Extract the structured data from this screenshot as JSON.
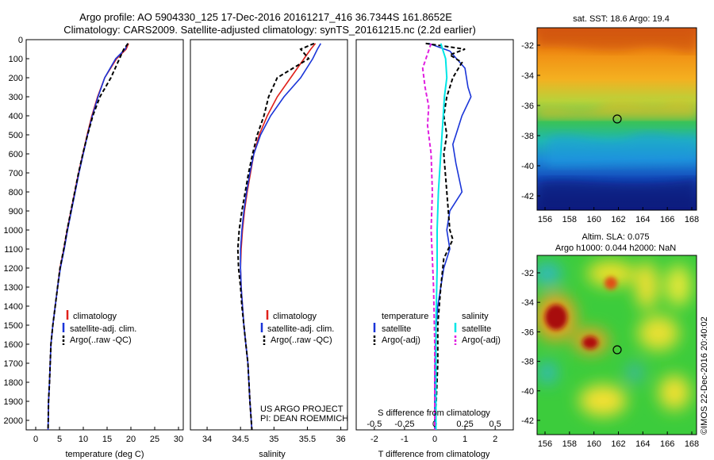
{
  "title": {
    "line1": "Argo profile: AO 5904330_125 17-Dec-2016 20161217_416 36.7344S 161.8652E",
    "line2": "Climatology: CARS2009. Satellite-adjusted climatology: synTS_20161215.nc (2.2d earlier)"
  },
  "colors": {
    "climatology": "#e0201a",
    "satellite": "#1a35d8",
    "argo": "#000000",
    "salinity_sat": "#00e6e6",
    "salinity_argo": "#e020e0",
    "frame": "#000000"
  },
  "panel_temperature": {
    "xlabel": "temperature (deg C)",
    "xticks": [
      "0",
      "5",
      "10",
      "15",
      "20",
      "25",
      "30"
    ],
    "yticks": [
      "0",
      "100",
      "200",
      "300",
      "400",
      "500",
      "600",
      "700",
      "800",
      "900",
      "1000",
      "1100",
      "1200",
      "1300",
      "1400",
      "1500",
      "1600",
      "1700",
      "1800",
      "1900",
      "2000"
    ],
    "legend": [
      "climatology",
      "satellite-adj. clim.",
      "Argo(..raw -QC)"
    ]
  },
  "panel_salinity": {
    "xlabel": "salinity",
    "xticks": [
      "34",
      "34.5",
      "35",
      "35.5",
      "36"
    ],
    "legend": [
      "climatology",
      "satellite-adj. clim.",
      "Argo(..raw -QC)"
    ],
    "credit_line1": "US ARGO PROJECT",
    "credit_line2": "PI: DEAN ROEMMICH"
  },
  "panel_difference": {
    "top_xlabel": "S difference from climatology",
    "top_xticks": [
      "-0.5",
      "-0.25",
      "0",
      "0.25",
      "0.5"
    ],
    "bottom_xlabel": "T difference from climatology",
    "bottom_xticks": [
      "-2",
      "-1",
      "0",
      "1",
      "2"
    ],
    "legend_temperature_title": "temperature",
    "legend_temperature": [
      "satellite",
      "Argo(-adj)"
    ],
    "legend_salinity_title": "salinity",
    "legend_salinity": [
      "satellite",
      "Argo(-adj)"
    ]
  },
  "map_sst": {
    "title": "sat. SST: 18.6  Argo: 19.4",
    "yticks": [
      "-32",
      "-34",
      "-36",
      "-38",
      "-40",
      "-42"
    ],
    "xticks": [
      "156",
      "158",
      "160",
      "162",
      "164",
      "166",
      "168"
    ]
  },
  "map_sla": {
    "title_line1": "Altim. SLA: 0.075",
    "title_line2": "Argo h1000: 0.044  h2000: NaN",
    "yticks": [
      "-32",
      "-34",
      "-36",
      "-38",
      "-40",
      "-42"
    ],
    "xticks": [
      "156",
      "158",
      "160",
      "162",
      "164",
      "166",
      "168"
    ],
    "stamp": "©IMOS 22-Dec-2016 20:40:02"
  },
  "chart_data": [
    {
      "type": "line",
      "title": "",
      "xlabel": "temperature (deg C)",
      "ylabel": "",
      "xlim": [
        -2,
        31
      ],
      "ylim": [
        2050,
        0
      ],
      "series": [
        {
          "name": "climatology",
          "x": [
            19.5,
            19.0,
            17.0,
            14.5,
            13.0,
            11.8,
            10.8,
            9.9,
            9.0,
            8.2,
            7.4,
            6.6,
            5.9,
            5.1,
            4.6,
            4.1,
            3.6,
            3.2,
            2.9,
            2.7,
            2.6
          ],
          "y": [
            20,
            50,
            100,
            200,
            300,
            400,
            500,
            600,
            700,
            800,
            900,
            1000,
            1100,
            1200,
            1300,
            1400,
            1500,
            1600,
            1800,
            1900,
            2050
          ]
        },
        {
          "name": "satellite-adj. clim.",
          "x": [
            19.3,
            18.8,
            16.8,
            14.5,
            13.1,
            11.9,
            10.9,
            10.0,
            9.1,
            8.3,
            7.5,
            6.7,
            6.0,
            5.2,
            4.6,
            4.1,
            3.6,
            3.2,
            2.9,
            2.7,
            2.6
          ],
          "y": [
            20,
            50,
            100,
            200,
            300,
            400,
            500,
            600,
            700,
            800,
            900,
            1000,
            1100,
            1200,
            1300,
            1400,
            1500,
            1600,
            1800,
            1900,
            2050
          ]
        },
        {
          "name": "Argo(..raw -QC)",
          "x": [
            19.4,
            18.5,
            17.6,
            15.8,
            13.5,
            12.0,
            10.9,
            9.9,
            9.0,
            8.2,
            7.4,
            6.6,
            5.9,
            5.1,
            4.6,
            4.1,
            3.6,
            3.2,
            2.9,
            2.7,
            2.6
          ],
          "y": [
            20,
            50,
            100,
            200,
            300,
            400,
            500,
            600,
            700,
            800,
            900,
            1000,
            1100,
            1200,
            1300,
            1400,
            1500,
            1600,
            1800,
            1900,
            2050
          ]
        }
      ]
    },
    {
      "type": "line",
      "title": "",
      "xlabel": "salinity",
      "ylabel": "",
      "xlim": [
        33.75,
        36.1
      ],
      "ylim": [
        2050,
        0
      ],
      "series": [
        {
          "name": "climatology",
          "x": [
            35.62,
            35.55,
            35.45,
            35.25,
            35.05,
            34.9,
            34.78,
            34.7,
            34.65,
            34.6,
            34.56,
            34.53,
            34.51,
            34.5,
            34.51,
            34.53,
            34.55,
            34.58,
            34.61,
            34.64,
            34.67
          ],
          "y": [
            20,
            50,
            100,
            200,
            300,
            400,
            500,
            600,
            700,
            800,
            900,
            1000,
            1100,
            1200,
            1300,
            1400,
            1500,
            1600,
            1700,
            1900,
            2050
          ]
        },
        {
          "name": "satellite-adj. clim.",
          "x": [
            35.7,
            35.65,
            35.58,
            35.4,
            35.15,
            34.95,
            34.8,
            34.7,
            34.64,
            34.59,
            34.55,
            34.52,
            34.5,
            34.5,
            34.51,
            34.53,
            34.55,
            34.58,
            34.61,
            34.64,
            34.67
          ],
          "y": [
            20,
            50,
            100,
            200,
            300,
            400,
            500,
            600,
            700,
            800,
            900,
            1000,
            1100,
            1200,
            1300,
            1400,
            1500,
            1600,
            1700,
            1900,
            2050
          ]
        },
        {
          "name": "Argo(..raw -QC)",
          "x": [
            35.6,
            35.4,
            35.52,
            35.05,
            34.92,
            34.85,
            34.75,
            34.68,
            34.62,
            34.57,
            34.52,
            34.48,
            34.46,
            34.47,
            34.5,
            34.52,
            34.55,
            34.58,
            34.61,
            34.64,
            34.67
          ],
          "y": [
            20,
            50,
            100,
            200,
            300,
            400,
            500,
            600,
            700,
            800,
            900,
            1000,
            1100,
            1200,
            1300,
            1400,
            1500,
            1600,
            1700,
            1900,
            2050
          ]
        }
      ]
    },
    {
      "type": "line",
      "title": "",
      "xlabel": "T difference from climatology",
      "ylabel": "",
      "xlim": [
        -2.6,
        2.6
      ],
      "ylim": [
        2050,
        0
      ],
      "series": [
        {
          "name": "temperature satellite",
          "x": [
            -0.2,
            0.5,
            1.0,
            1.1,
            1.2,
            0.9,
            0.7,
            0.6,
            0.7,
            0.9,
            0.5,
            0.4,
            0.5,
            0.3,
            0.2,
            0.1,
            0.05,
            0.02,
            0.0,
            0.0,
            0.0
          ],
          "y": [
            20,
            60,
            150,
            250,
            300,
            400,
            500,
            550,
            650,
            800,
            900,
            1000,
            1100,
            1200,
            1300,
            1400,
            1500,
            1600,
            1800,
            1900,
            2050
          ]
        },
        {
          "name": "temperature Argo(-adj)",
          "x": [
            -0.3,
            1.0,
            0.5,
            0.9,
            0.6,
            0.4,
            0.3,
            0.4,
            0.3,
            0.4,
            0.5,
            0.6,
            0.3,
            0.2,
            0.15,
            0.1,
            0.1,
            0.05,
            0.0
          ],
          "y": [
            20,
            50,
            80,
            120,
            200,
            300,
            400,
            500,
            600,
            800,
            1000,
            1050,
            1150,
            1300,
            1400,
            1500,
            1700,
            1900,
            2050
          ]
        },
        {
          "name": "salinity satellite",
          "x": [
            0.05,
            0.09,
            0.1,
            0.08,
            0.07,
            0.05,
            0.03,
            0.02,
            0.02,
            0.01,
            0.01,
            0.01
          ],
          "y": [
            20,
            100,
            200,
            300,
            400,
            600,
            800,
            1000,
            1200,
            1500,
            1800,
            2050
          ]
        },
        {
          "name": "salinity Argo(-adj)",
          "x": [
            -0.03,
            -0.1,
            -0.08,
            -0.05,
            -0.06,
            -0.03,
            -0.02,
            -0.03,
            -0.02,
            -0.01,
            0.0,
            0.0
          ],
          "y": [
            20,
            150,
            250,
            350,
            450,
            600,
            800,
            1000,
            1150,
            1300,
            1600,
            2050
          ]
        }
      ]
    }
  ]
}
